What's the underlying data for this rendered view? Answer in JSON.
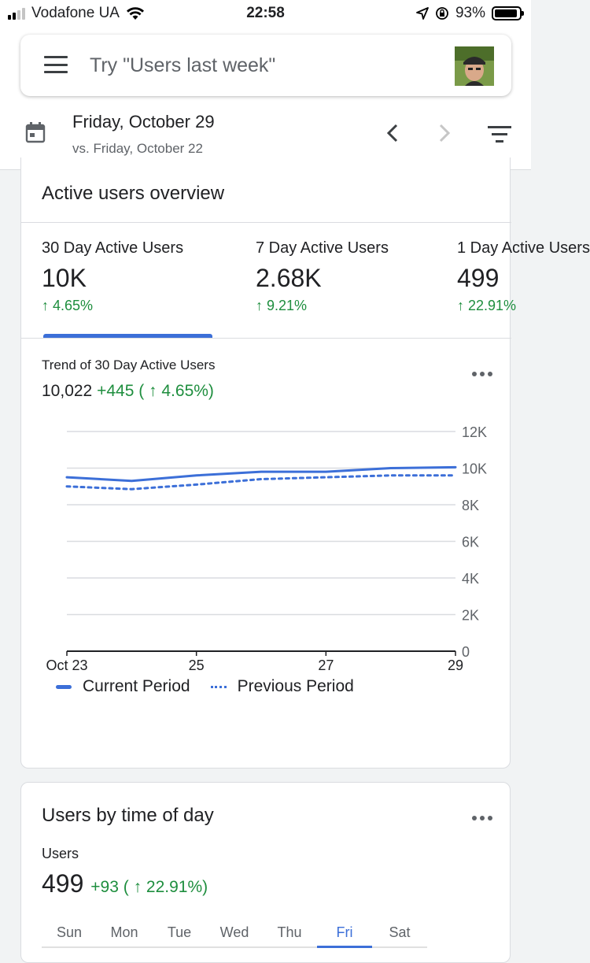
{
  "status_bar": {
    "carrier": "Vodafone UA",
    "time": "22:58",
    "battery_percent": "93%",
    "battery_level": 0.93,
    "icons": [
      "signal-icon",
      "wifi-icon",
      "location-arrow-icon",
      "orientation-lock-icon",
      "battery-icon"
    ]
  },
  "search": {
    "placeholder": "Try \"Users last week\""
  },
  "date_range": {
    "primary": "Friday, October 29",
    "comparison": "vs. Friday, October 22"
  },
  "overview_card": {
    "title": "Active users overview",
    "metrics": [
      {
        "label": "30 Day Active Users",
        "value": "10K",
        "change": "↑ 4.65%"
      },
      {
        "label": "7 Day Active Users",
        "value": "2.68K",
        "change": "↑ 9.21%"
      },
      {
        "label": "1 Day Active Users",
        "value": "499",
        "change": "↑ 22.91%"
      }
    ],
    "selected_metric": 0,
    "trend_label": "Trend of 30 Day Active Users",
    "trend_total": "10,022",
    "trend_delta": "+445 ( ↑ 4.65%)"
  },
  "chart_data": {
    "type": "line",
    "title": "Trend of 30 Day Active Users",
    "x": [
      "Oct 23",
      "Oct 24",
      "Oct 25",
      "Oct 26",
      "Oct 27",
      "Oct 28",
      "Oct 29"
    ],
    "x_tick_labels": [
      "Oct 23",
      "25",
      "27",
      "29"
    ],
    "y_tick_labels": [
      "12K",
      "10K",
      "8K",
      "6K",
      "4K",
      "2K",
      "0"
    ],
    "ylim": [
      0,
      12000
    ],
    "series": [
      {
        "name": "Current Period",
        "style": "solid",
        "values": [
          9500,
          9300,
          9600,
          9800,
          9800,
          10000,
          10050
        ]
      },
      {
        "name": "Previous Period",
        "style": "dotted",
        "values": [
          9000,
          8850,
          9100,
          9400,
          9500,
          9600,
          9600
        ]
      }
    ],
    "grid": true,
    "legend": "bottom",
    "color": "#3c6fd8"
  },
  "time_of_day_card": {
    "title": "Users by time of day",
    "metric_label": "Users",
    "value": "499",
    "delta": "+93 ( ↑ 22.91%)",
    "days": [
      "Sun",
      "Mon",
      "Tue",
      "Wed",
      "Thu",
      "Fri",
      "Sat"
    ],
    "active_day": "Fri"
  },
  "colors": {
    "accent": "#3c6fd8",
    "positive": "#1e8e3e",
    "text": "#202124",
    "secondary_text": "#5f6368"
  }
}
